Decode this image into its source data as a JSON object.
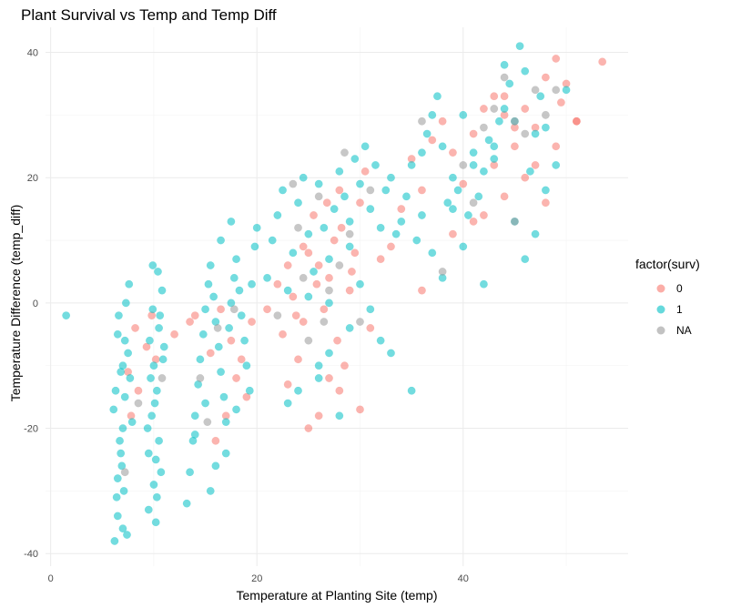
{
  "chart_data": {
    "type": "scatter",
    "title": "Plant Survival vs Temp and Temp Diff",
    "xlabel": "Temperature at Planting Site (temp)",
    "ylabel": "Temperature Difference (temp_diff)",
    "xlim": [
      -0.5,
      56
    ],
    "ylim": [
      -42,
      44
    ],
    "x_ticks": [
      0,
      20,
      40
    ],
    "y_ticks": [
      -40,
      -20,
      0,
      20,
      40
    ],
    "grid": true,
    "legend": {
      "title": "factor(surv)",
      "position": "right"
    },
    "series": [
      {
        "name": "0",
        "color": "#F8766D",
        "points": [
          [
            7.5,
            -11
          ],
          [
            8.2,
            -4
          ],
          [
            9.3,
            -7
          ],
          [
            8.5,
            -14
          ],
          [
            9.8,
            -2
          ],
          [
            10.2,
            -9
          ],
          [
            7.8,
            -18
          ],
          [
            12,
            -5
          ],
          [
            14,
            -2
          ],
          [
            15.5,
            -8
          ],
          [
            16.5,
            -1
          ],
          [
            17.5,
            -6
          ],
          [
            18,
            -12
          ],
          [
            19,
            -15
          ],
          [
            16,
            -22
          ],
          [
            17,
            -18
          ],
          [
            13.5,
            -3
          ],
          [
            18.5,
            -9
          ],
          [
            19.5,
            -3
          ],
          [
            21,
            -1
          ],
          [
            22,
            3
          ],
          [
            22.5,
            -5
          ],
          [
            23,
            6
          ],
          [
            23.5,
            1
          ],
          [
            24,
            -9
          ],
          [
            24.5,
            -3
          ],
          [
            25,
            8
          ],
          [
            25.5,
            14
          ],
          [
            26,
            6
          ],
          [
            26.5,
            -1
          ],
          [
            27,
            4
          ],
          [
            27.5,
            10
          ],
          [
            28,
            18
          ],
          [
            28.5,
            -10
          ],
          [
            29,
            2
          ],
          [
            29.5,
            8
          ],
          [
            30,
            16
          ],
          [
            30.5,
            21
          ],
          [
            31,
            -4
          ],
          [
            32,
            7
          ],
          [
            23,
            -13
          ],
          [
            25,
            -20
          ],
          [
            26,
            -18
          ],
          [
            27,
            -12
          ],
          [
            28,
            -14
          ],
          [
            30,
            -17
          ],
          [
            24.5,
            9
          ],
          [
            26.8,
            16
          ],
          [
            28.2,
            12
          ],
          [
            29.2,
            5
          ],
          [
            23.8,
            -2
          ],
          [
            27.8,
            -6
          ],
          [
            25.8,
            3
          ],
          [
            33,
            9
          ],
          [
            34,
            15
          ],
          [
            35,
            23
          ],
          [
            36,
            18
          ],
          [
            37,
            26
          ],
          [
            38,
            29
          ],
          [
            39,
            24
          ],
          [
            40,
            19
          ],
          [
            41,
            27
          ],
          [
            42,
            31
          ],
          [
            43,
            22
          ],
          [
            44,
            30
          ],
          [
            45,
            25
          ],
          [
            46,
            31
          ],
          [
            47,
            28
          ],
          [
            48,
            36
          ],
          [
            49,
            39
          ],
          [
            50,
            35
          ],
          [
            51,
            29
          ],
          [
            53.5,
            38.5
          ],
          [
            51,
            29
          ],
          [
            49,
            25
          ],
          [
            48,
            16
          ],
          [
            46,
            20
          ],
          [
            44,
            17
          ],
          [
            42,
            14
          ],
          [
            43,
            33
          ],
          [
            45,
            28
          ],
          [
            47,
            22
          ],
          [
            39,
            11
          ],
          [
            41,
            13
          ],
          [
            36,
            2
          ],
          [
            44,
            33
          ],
          [
            49.5,
            32
          ]
        ]
      },
      {
        "name": "1",
        "color": "#00BFC4",
        "points": [
          [
            1.5,
            -2
          ],
          [
            6.2,
            -38
          ],
          [
            6.5,
            -34
          ],
          [
            6.5,
            -28
          ],
          [
            6.8,
            -24
          ],
          [
            7,
            -20
          ],
          [
            7.2,
            -15
          ],
          [
            7,
            -10
          ],
          [
            6.5,
            -5
          ],
          [
            7.3,
            0
          ],
          [
            7.6,
            3
          ],
          [
            7.1,
            -30
          ],
          [
            6.9,
            -26
          ],
          [
            7.5,
            -8
          ],
          [
            6.3,
            -14
          ],
          [
            6.7,
            -22
          ],
          [
            7.4,
            -37
          ],
          [
            7.7,
            -12
          ],
          [
            6.1,
            -17
          ],
          [
            7.2,
            -6
          ],
          [
            6.6,
            -2
          ],
          [
            6.4,
            -31
          ],
          [
            7.9,
            -19
          ],
          [
            6.8,
            -11
          ],
          [
            7,
            -36
          ],
          [
            9.5,
            -33
          ],
          [
            10,
            -29
          ],
          [
            10.2,
            -25
          ],
          [
            10.5,
            -22
          ],
          [
            9.8,
            -18
          ],
          [
            10.3,
            -14
          ],
          [
            10,
            -10
          ],
          [
            9.6,
            -6
          ],
          [
            10.6,
            -2
          ],
          [
            10.8,
            2
          ],
          [
            10.4,
            5
          ],
          [
            9.9,
            -1
          ],
          [
            10.1,
            -16
          ],
          [
            10.7,
            -27
          ],
          [
            9.4,
            -20
          ],
          [
            10.9,
            -9
          ],
          [
            10.2,
            -35
          ],
          [
            9.7,
            -12
          ],
          [
            10.5,
            -4
          ],
          [
            11,
            -7
          ],
          [
            9.9,
            6
          ],
          [
            10.3,
            -31
          ],
          [
            9.5,
            -24
          ],
          [
            13.2,
            -32
          ],
          [
            13.5,
            -27
          ],
          [
            13.8,
            -22
          ],
          [
            14,
            -18
          ],
          [
            14.3,
            -13
          ],
          [
            14.5,
            -9
          ],
          [
            14.8,
            -5
          ],
          [
            15,
            -1
          ],
          [
            15.3,
            3
          ],
          [
            15.5,
            6
          ],
          [
            15.8,
            1
          ],
          [
            16,
            -3
          ],
          [
            16.3,
            -7
          ],
          [
            16.5,
            -11
          ],
          [
            16.8,
            -15
          ],
          [
            17,
            -19
          ],
          [
            17.3,
            -4
          ],
          [
            17.5,
            0
          ],
          [
            17.8,
            4
          ],
          [
            18,
            7
          ],
          [
            18.3,
            2
          ],
          [
            18.5,
            -2
          ],
          [
            18.8,
            -6
          ],
          [
            19,
            -10
          ],
          [
            19.3,
            -14
          ],
          [
            19.5,
            3
          ],
          [
            19.8,
            9
          ],
          [
            20,
            12
          ],
          [
            15.5,
            -30
          ],
          [
            16,
            -26
          ],
          [
            17,
            -24
          ],
          [
            16.5,
            10
          ],
          [
            17.5,
            13
          ],
          [
            18,
            -17
          ],
          [
            14,
            -21
          ],
          [
            15,
            -16
          ],
          [
            21,
            4
          ],
          [
            21.5,
            10
          ],
          [
            22,
            14
          ],
          [
            22.5,
            18
          ],
          [
            23,
            2
          ],
          [
            23.5,
            8
          ],
          [
            24,
            16
          ],
          [
            24.5,
            20
          ],
          [
            25,
            11
          ],
          [
            25.5,
            5
          ],
          [
            26,
            19
          ],
          [
            26.5,
            12
          ],
          [
            27,
            7
          ],
          [
            27.5,
            15
          ],
          [
            28,
            21
          ],
          [
            28.5,
            17
          ],
          [
            29,
            13
          ],
          [
            29.5,
            23
          ],
          [
            30,
            19
          ],
          [
            30.5,
            25
          ],
          [
            31,
            15
          ],
          [
            31.5,
            22
          ],
          [
            32,
            12
          ],
          [
            32.5,
            18
          ],
          [
            33,
            20
          ],
          [
            33.5,
            11
          ],
          [
            34,
            13
          ],
          [
            34.5,
            17
          ],
          [
            35,
            22
          ],
          [
            23,
            -16
          ],
          [
            24,
            -14
          ],
          [
            26,
            -10
          ],
          [
            27,
            -8
          ],
          [
            29,
            -4
          ],
          [
            31,
            -1
          ],
          [
            33,
            -8
          ],
          [
            35,
            -14
          ],
          [
            28,
            -18
          ],
          [
            26,
            -12
          ],
          [
            30,
            3
          ],
          [
            32,
            -6
          ],
          [
            27,
            0
          ],
          [
            25,
            1
          ],
          [
            29,
            9
          ],
          [
            35.5,
            10
          ],
          [
            36,
            14
          ],
          [
            36.5,
            27
          ],
          [
            37,
            30
          ],
          [
            37.5,
            33
          ],
          [
            38,
            25
          ],
          [
            38.5,
            16
          ],
          [
            39,
            20
          ],
          [
            39.5,
            18
          ],
          [
            40,
            9
          ],
          [
            40.5,
            14
          ],
          [
            41,
            22
          ],
          [
            41.5,
            17
          ],
          [
            42,
            21
          ],
          [
            42.5,
            26
          ],
          [
            43,
            23
          ],
          [
            43.5,
            29
          ],
          [
            44,
            31
          ],
          [
            44.5,
            35
          ],
          [
            45,
            29
          ],
          [
            45.5,
            41
          ],
          [
            46,
            37
          ],
          [
            46.5,
            21
          ],
          [
            47,
            27
          ],
          [
            47.5,
            33
          ],
          [
            48,
            18
          ],
          [
            49,
            22
          ],
          [
            50,
            34
          ],
          [
            44,
            38
          ],
          [
            42,
            3
          ],
          [
            38,
            4
          ],
          [
            37,
            8
          ],
          [
            39,
            15
          ],
          [
            41,
            24
          ],
          [
            45,
            13
          ],
          [
            46,
            7
          ],
          [
            48,
            28
          ],
          [
            43,
            25
          ],
          [
            40,
            30
          ],
          [
            36,
            24
          ],
          [
            47,
            11
          ]
        ]
      },
      {
        "name": "NA",
        "color": "#999999",
        "points": [
          [
            8.5,
            -16
          ],
          [
            10.8,
            -12
          ],
          [
            7.2,
            -27
          ],
          [
            14.5,
            -12
          ],
          [
            16.2,
            -4
          ],
          [
            17.8,
            -1
          ],
          [
            15.2,
            -19
          ],
          [
            22,
            -2
          ],
          [
            24,
            12
          ],
          [
            25,
            -6
          ],
          [
            26,
            17
          ],
          [
            27,
            2
          ],
          [
            28,
            6
          ],
          [
            29,
            11
          ],
          [
            30,
            -3
          ],
          [
            31,
            18
          ],
          [
            28.5,
            24
          ],
          [
            23.5,
            19
          ],
          [
            26.5,
            -3
          ],
          [
            24.5,
            4
          ],
          [
            36,
            29
          ],
          [
            38,
            5
          ],
          [
            40,
            22
          ],
          [
            42,
            28
          ],
          [
            44,
            36
          ],
          [
            45,
            29
          ],
          [
            46,
            27
          ],
          [
            47,
            34
          ],
          [
            48,
            30
          ],
          [
            49,
            34
          ],
          [
            45,
            13
          ],
          [
            43,
            31
          ],
          [
            41,
            16
          ]
        ]
      }
    ]
  }
}
